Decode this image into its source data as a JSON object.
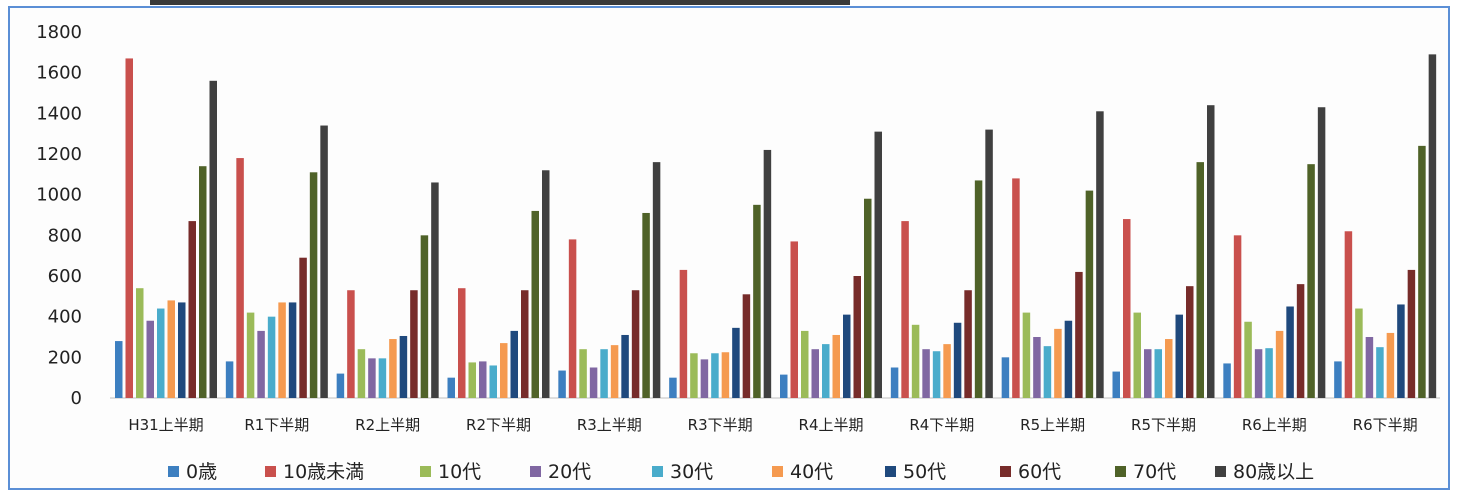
{
  "chart_data": {
    "type": "bar",
    "title": "",
    "xlabel": "",
    "ylabel": "",
    "ylim": [
      0,
      1800
    ],
    "yticks": [
      0,
      200,
      400,
      600,
      800,
      1000,
      1200,
      1400,
      1600,
      1800
    ],
    "grid": false,
    "legend_position": "bottom",
    "categories": [
      "H31上半期",
      "R1下半期",
      "R2上半期",
      "R2下半期",
      "R3上半期",
      "R3下半期",
      "R4上半期",
      "R4下半期",
      "R5上半期",
      "R5下半期",
      "R6上半期",
      "R6下半期"
    ],
    "series": [
      {
        "name": "0歳",
        "color": "#3d7fc0",
        "values": [
          280,
          180,
          120,
          100,
          135,
          100,
          115,
          150,
          200,
          130,
          170,
          180
        ]
      },
      {
        "name": "10歳未満",
        "color": "#c9504d",
        "values": [
          1670,
          1180,
          530,
          540,
          780,
          630,
          770,
          870,
          1080,
          880,
          800,
          820
        ]
      },
      {
        "name": "10代",
        "color": "#9bbb59",
        "values": [
          540,
          420,
          240,
          175,
          240,
          220,
          330,
          360,
          420,
          420,
          375,
          440
        ]
      },
      {
        "name": "20代",
        "color": "#8067a2",
        "values": [
          380,
          330,
          195,
          180,
          150,
          190,
          240,
          240,
          300,
          240,
          240,
          300
        ]
      },
      {
        "name": "30代",
        "color": "#4aaccb",
        "values": [
          440,
          400,
          195,
          160,
          240,
          220,
          265,
          230,
          255,
          240,
          245,
          250
        ]
      },
      {
        "name": "40代",
        "color": "#f59a50",
        "values": [
          480,
          470,
          290,
          270,
          260,
          225,
          310,
          265,
          340,
          290,
          330,
          320
        ]
      },
      {
        "name": "50代",
        "color": "#1f497d",
        "values": [
          470,
          470,
          305,
          330,
          310,
          345,
          410,
          370,
          380,
          410,
          450,
          460
        ]
      },
      {
        "name": "60代",
        "color": "#772c2a",
        "values": [
          870,
          690,
          530,
          530,
          530,
          510,
          600,
          530,
          620,
          550,
          560,
          630
        ]
      },
      {
        "name": "70代",
        "color": "#4f6228",
        "values": [
          1140,
          1110,
          800,
          920,
          910,
          950,
          980,
          1070,
          1020,
          1160,
          1150,
          1240
        ]
      },
      {
        "name": "80歳以上",
        "color": "#404040",
        "values": [
          1560,
          1340,
          1060,
          1120,
          1160,
          1220,
          1310,
          1320,
          1410,
          1440,
          1430,
          1690
        ]
      }
    ]
  }
}
